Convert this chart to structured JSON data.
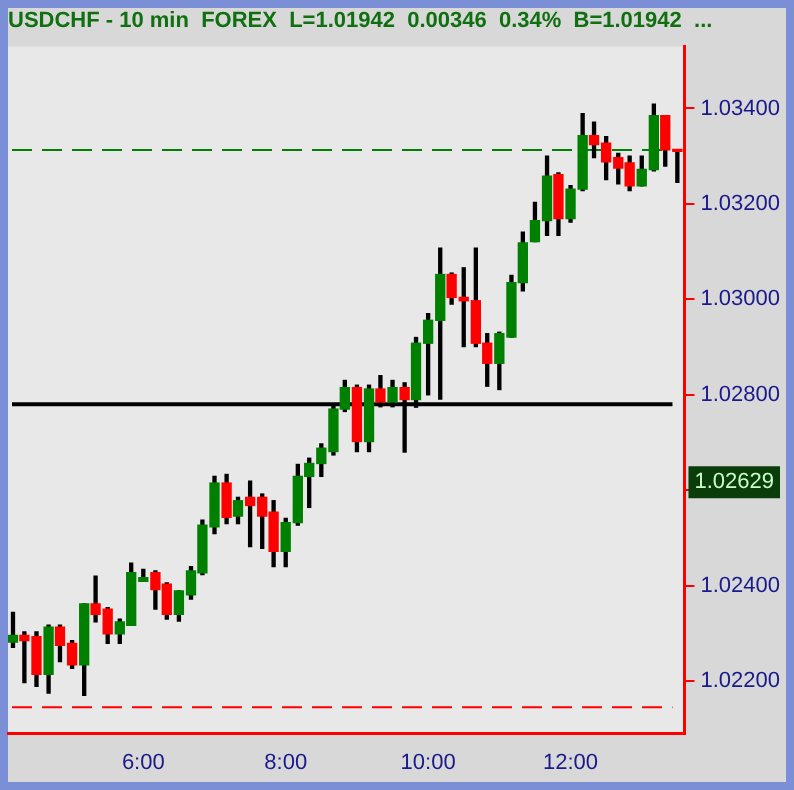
{
  "chart_data": {
    "type": "candlestick",
    "title": "USDCHF - 10 min  FOREX  L=1.01942  0.00346  0.34%  B=1.01942  ...",
    "x": [
      4.17,
      4.33,
      4.5,
      4.67,
      4.83,
      5,
      5.17,
      5.33,
      5.5,
      5.67,
      5.83,
      6,
      6.17,
      6.33,
      6.5,
      6.67,
      6.83,
      7,
      7.17,
      7.33,
      7.5,
      7.67,
      7.83,
      8,
      8.17,
      8.33,
      8.5,
      8.67,
      8.83,
      9,
      9.17,
      9.33,
      9.5,
      9.67,
      9.83,
      10,
      10.17,
      10.33,
      10.5,
      10.67,
      10.83,
      11,
      11.17,
      11.33,
      11.5,
      11.67,
      11.83,
      12,
      12.17,
      12.33,
      12.5,
      12.67,
      12.83,
      13,
      13.17,
      13.33,
      13.5
    ],
    "ohlc": [
      [
        1.02282,
        1.02344,
        1.02271,
        1.02296
      ],
      [
        1.02296,
        1.02303,
        1.02197,
        1.02285
      ],
      [
        1.02293,
        1.02303,
        1.02189,
        1.02214
      ],
      [
        1.02214,
        1.02317,
        1.02175,
        1.02313
      ],
      [
        1.02313,
        1.02317,
        1.02241,
        1.02275
      ],
      [
        1.02279,
        1.02285,
        1.02227,
        1.02234
      ],
      [
        1.02234,
        1.02362,
        1.0217,
        1.02362
      ],
      [
        1.02362,
        1.0242,
        1.02324,
        1.0234
      ],
      [
        1.02351,
        1.02354,
        1.02279,
        1.02299
      ],
      [
        1.02299,
        1.0233,
        1.02279,
        1.02324
      ],
      [
        1.02317,
        1.02447,
        1.02317,
        1.02427
      ],
      [
        1.02409,
        1.02434,
        1.02409,
        1.02417
      ],
      [
        1.02427,
        1.02431,
        1.02351,
        1.02392
      ],
      [
        1.02403,
        1.02406,
        1.0233,
        1.0234
      ],
      [
        1.0234,
        1.02389,
        1.02326,
        1.02389
      ],
      [
        1.02381,
        1.0244,
        1.02372,
        1.02431
      ],
      [
        1.02427,
        1.02537,
        1.02423,
        1.02527
      ],
      [
        1.02523,
        1.02629,
        1.02509,
        1.02615
      ],
      [
        1.02615,
        1.02633,
        1.0253,
        1.02543
      ],
      [
        1.02546,
        1.02585,
        1.0253,
        1.02578
      ],
      [
        1.02585,
        1.02619,
        1.02482,
        1.02568
      ],
      [
        1.02585,
        1.02592,
        1.02478,
        1.02546
      ],
      [
        1.02554,
        1.02578,
        1.0244,
        1.02472
      ],
      [
        1.02472,
        1.02541,
        1.0244,
        1.02532
      ],
      [
        1.02532,
        1.02654,
        1.02527,
        1.02629
      ],
      [
        1.02629,
        1.02667,
        1.02564,
        1.02656
      ],
      [
        1.02656,
        1.02697,
        1.02629,
        1.02688
      ],
      [
        1.02681,
        1.0278,
        1.02674,
        1.0277
      ],
      [
        1.0277,
        1.0283,
        1.02765,
        1.02815
      ],
      [
        1.02815,
        1.0282,
        1.02681,
        1.02702
      ],
      [
        1.02702,
        1.0282,
        1.02681,
        1.02812
      ],
      [
        1.02812,
        1.0284,
        1.02775,
        1.02785
      ],
      [
        1.02785,
        1.0283,
        1.02775,
        1.02815
      ],
      [
        1.02815,
        1.02825,
        1.0268,
        1.0279
      ],
      [
        1.0279,
        1.0292,
        1.02774,
        1.02908
      ],
      [
        1.02908,
        1.0297,
        1.028,
        1.02956
      ],
      [
        1.02956,
        1.03107,
        1.02791,
        1.03052
      ],
      [
        1.03052,
        1.03055,
        1.0299,
        1.03004
      ],
      [
        1.03004,
        1.03066,
        1.02901,
        1.02997
      ],
      [
        1.02997,
        1.03107,
        1.02901,
        1.02908
      ],
      [
        1.02908,
        1.02928,
        1.02818,
        1.02866
      ],
      [
        1.02866,
        1.02931,
        1.02811,
        1.02928
      ],
      [
        1.02921,
        1.0305,
        1.02921,
        1.03035
      ],
      [
        1.03035,
        1.03141,
        1.03018,
        1.03118
      ],
      [
        1.03121,
        1.03203,
        1.03121,
        1.03165
      ],
      [
        1.03165,
        1.033,
        1.03134,
        1.03258
      ],
      [
        1.03261,
        1.03265,
        1.03134,
        1.03169
      ],
      [
        1.03169,
        1.03238,
        1.03162,
        1.03231
      ],
      [
        1.03231,
        1.03389,
        1.03228,
        1.03343
      ],
      [
        1.03343,
        1.03371,
        1.03297,
        1.03324
      ],
      [
        1.03327,
        1.03341,
        1.03251,
        1.03288
      ],
      [
        1.03297,
        1.03306,
        1.03242,
        1.03275
      ],
      [
        1.03286,
        1.033,
        1.03228,
        1.03238
      ],
      [
        1.03238,
        1.033,
        1.03238,
        1.03272
      ],
      [
        1.03272,
        1.03409,
        1.03269,
        1.03385
      ],
      [
        1.03385,
        1.03385,
        1.03279,
        1.03313
      ],
      [
        1.03313,
        1.03313,
        1.03245,
        1.0331
      ]
    ],
    "colors": [
      "#008000",
      "#ff0000",
      "#ff0000",
      "#008000",
      "#ff0000",
      "#ff0000",
      "#008000",
      "#ff0000",
      "#ff0000",
      "#008000",
      "#008000",
      "#008000",
      "#ff0000",
      "#ff0000",
      "#008000",
      "#008000",
      "#008000",
      "#008000",
      "#ff0000",
      "#008000",
      "#ff0000",
      "#ff0000",
      "#ff0000",
      "#008000",
      "#008000",
      "#008000",
      "#008000",
      "#008000",
      "#008000",
      "#ff0000",
      "#008000",
      "#ff0000",
      "#008000",
      "#ff0000",
      "#008000",
      "#008000",
      "#008000",
      "#ff0000",
      "#ff0000",
      "#ff0000",
      "#ff0000",
      "#008000",
      "#008000",
      "#008000",
      "#008000",
      "#008000",
      "#ff0000",
      "#008000",
      "#008000",
      "#ff0000",
      "#ff0000",
      "#ff0000",
      "#ff0000",
      "#008000",
      "#008000",
      "#ff0000",
      "#ff0000"
    ],
    "xlim": [
      4.1,
      13.6
    ],
    "xticks": [
      {
        "value": 6,
        "label": "6:00"
      },
      {
        "value": 8,
        "label": "8:00"
      },
      {
        "value": 10,
        "label": "10:00"
      },
      {
        "value": 12,
        "label": "12:00"
      }
    ],
    "ylim": [
      1.0209,
      1.0353
    ],
    "yticks": [
      {
        "value": 1.022,
        "label": "1.02200"
      },
      {
        "value": 1.024,
        "label": "1.02400"
      },
      {
        "value": 1.026,
        "label": null
      },
      {
        "value": 1.028,
        "label": "1.02800"
      },
      {
        "value": 1.03,
        "label": "1.03000"
      },
      {
        "value": 1.032,
        "label": "1.03200"
      },
      {
        "value": 1.034,
        "label": "1.03400"
      }
    ],
    "ref_lines": [
      {
        "axis": "y",
        "value": 1.03313,
        "color": "#008000",
        "line_style": "dashed"
      },
      {
        "axis": "y",
        "value": 1.0278,
        "color": "#000000",
        "line_style": "solid"
      },
      {
        "axis": "y",
        "value": 1.02145,
        "color": "#ff0000",
        "line_style": "dashed"
      }
    ],
    "annotations": [
      "1.02629"
    ]
  }
}
